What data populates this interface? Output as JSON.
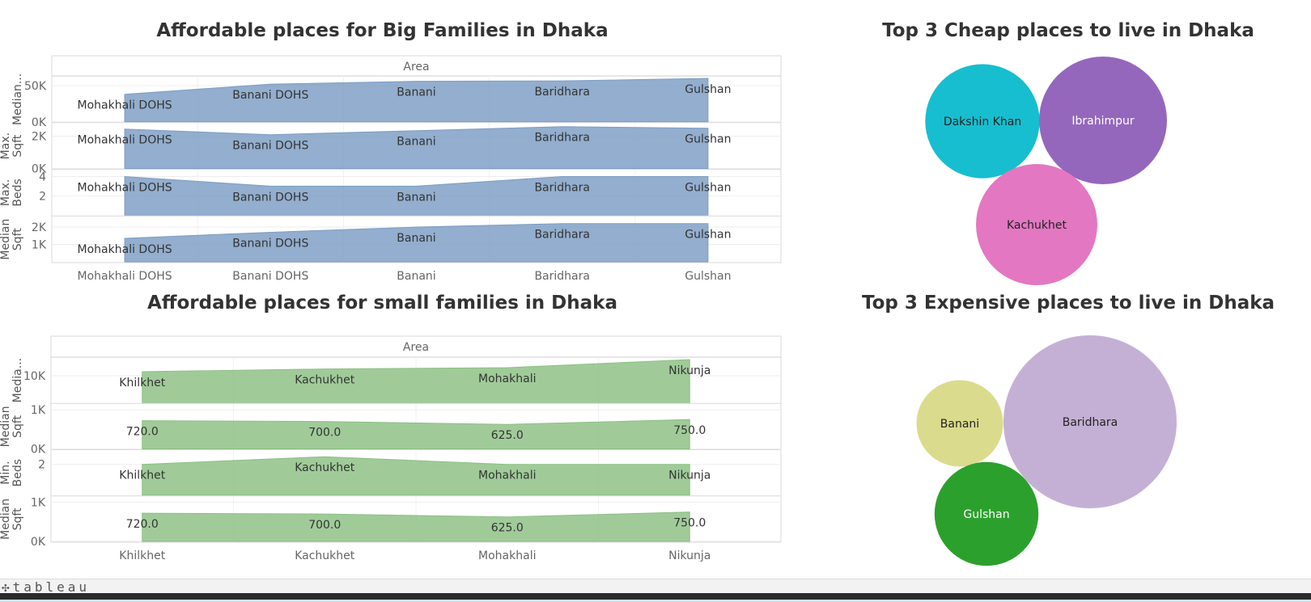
{
  "chart_data": [
    {
      "type": "area",
      "title": "Affordable places for Big Families in Dhaka",
      "header": "Area",
      "categories": [
        "Mohakhali DOHS",
        "Banani DOHS",
        "Banani",
        "Baridhara",
        "Gulshan"
      ],
      "color": "#7b9cc3",
      "series": [
        {
          "name": "Median...",
          "ticks": [
            "50K",
            "0K"
          ],
          "ylim": [
            0,
            60000
          ],
          "values": [
            38000,
            52000,
            56000,
            56500,
            60000
          ]
        },
        {
          "name": "Max. Sqft",
          "ticks": [
            "2K",
            "0K"
          ],
          "ylim": [
            0,
            2700
          ],
          "values": [
            2450,
            2100,
            2350,
            2600,
            2500
          ]
        },
        {
          "name": "Max. Beds",
          "ticks": [
            "4",
            "2"
          ],
          "ylim": [
            0,
            4.5
          ],
          "values": [
            4,
            3,
            3,
            4,
            4
          ]
        },
        {
          "name": "Median Sqft",
          "ticks": [
            "2K",
            "1K"
          ],
          "ylim": [
            0,
            2500
          ],
          "values": [
            1350,
            1700,
            2000,
            2200,
            2200
          ]
        }
      ],
      "mark_labels": [
        [
          "Mohakhali DOHS",
          "Banani DOHS",
          "Banani",
          "Baridhara",
          "Gulshan"
        ],
        [
          "Mohakhali DOHS",
          "Banani DOHS",
          "Banani",
          "Baridhara",
          "Gulshan"
        ],
        [
          "Mohakhali DOHS",
          "Banani DOHS",
          "Banani",
          "Baridhara",
          "Gulshan"
        ],
        [
          "Mohakhali DOHS",
          "Banani DOHS",
          "Banani",
          "Baridhara",
          "Gulshan"
        ]
      ]
    },
    {
      "type": "area",
      "title": "Affordable places for small families in Dhaka",
      "header": "Area",
      "categories": [
        "Khilkhet",
        "Kachukhet",
        "Mohakhali",
        "Nikunja"
      ],
      "color": "#8bbf82",
      "series": [
        {
          "name": "Media...",
          "ticks": [
            "10K"
          ],
          "ylim": [
            0,
            16000
          ],
          "values": [
            11500,
            12500,
            13000,
            16000
          ]
        },
        {
          "name": "Median Sqft",
          "ticks": [
            "1K",
            "0K"
          ],
          "ylim": [
            0,
            1100
          ],
          "values": [
            720,
            700,
            625,
            750
          ]
        },
        {
          "name": "Min. Beds",
          "ticks": [
            "2"
          ],
          "ylim": [
            0,
            2.8
          ],
          "values": [
            2,
            2.5,
            2,
            2
          ]
        },
        {
          "name": "Median Sqft",
          "ticks": [
            "1K",
            "0K"
          ],
          "ylim": [
            0,
            1100
          ],
          "values": [
            720,
            700,
            625,
            750
          ]
        }
      ],
      "mark_labels": [
        [
          "Khilkhet",
          "Kachukhet",
          "Mohakhali",
          "Nikunja"
        ],
        [
          "720.0",
          "700.0",
          "625.0",
          "750.0"
        ],
        [
          "Khilkhet",
          "Kachukhet",
          "Mohakhali",
          "Nikunja"
        ],
        [
          "720.0",
          "700.0",
          "625.0",
          "750.0"
        ]
      ]
    },
    {
      "type": "bubble",
      "title": "Top 3 Cheap places to live in Dhaka",
      "bubbles": [
        {
          "label": "Dakshin Khan",
          "size": 0.8,
          "color": "#17becf",
          "text_color": "#222222"
        },
        {
          "label": "Ibrahimpur",
          "size": 1.0,
          "color": "#9467bd",
          "text_color": "#ffffff"
        },
        {
          "label": "Kachukhet",
          "size": 0.9,
          "color": "#e377c2",
          "text_color": "#222222"
        }
      ]
    },
    {
      "type": "bubble",
      "title": "Top  3  Expensive places to live in Dhaka",
      "bubbles": [
        {
          "label": "Banani",
          "size": 0.25,
          "color": "#dbdb8d",
          "text_color": "#222222"
        },
        {
          "label": "Baridhara",
          "size": 1.0,
          "color": "#c5b0d5",
          "text_color": "#222222"
        },
        {
          "label": "Gulshan",
          "size": 0.36,
          "color": "#2ca02c",
          "text_color": "#ffffff"
        }
      ]
    }
  ]
}
